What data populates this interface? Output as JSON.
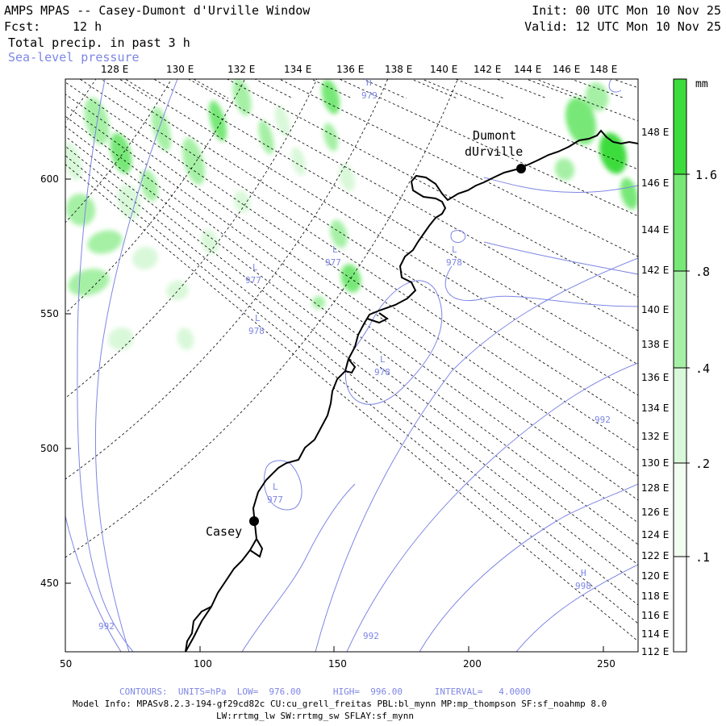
{
  "header": {
    "title": "AMPS MPAS -- Casey-Dumont d'Urville Window",
    "fcst_label": "Fcst:",
    "fcst_value": "12 h",
    "field1": "Total precip. in past 3 h",
    "field2": "Sea-level pressure",
    "init": "Init: 00 UTC Mon 10 Nov 25",
    "valid": "Valid: 12 UTC Mon 10 Nov 25"
  },
  "top_lon_labels": [
    "128 E",
    "130 E",
    "132 E",
    "134 E",
    "136 E",
    "138 E",
    "140 E",
    "142 E",
    "144 E",
    "146 E",
    "148 E"
  ],
  "right_lon_labels": [
    "148 E",
    "146 E",
    "144 E",
    "142 E",
    "140 E",
    "138 E",
    "136 E",
    "134 E",
    "132 E",
    "130 E",
    "128 E",
    "126 E",
    "124 E",
    "122 E",
    "120 E",
    "118 E",
    "116 E",
    "114 E",
    "112 E"
  ],
  "x_axis_labels": [
    "50",
    "100",
    "150",
    "200",
    "250"
  ],
  "y_axis_labels": [
    "600",
    "550",
    "500",
    "450"
  ],
  "stations": [
    {
      "name": "Casey"
    },
    {
      "name_line1": "Dumont",
      "name_line2": "dUrville"
    }
  ],
  "pressure_labels": [
    {
      "kind": "H",
      "value": "979"
    },
    {
      "kind": "L",
      "value": "977"
    },
    {
      "kind": "L",
      "value": "977"
    },
    {
      "kind": "L",
      "value": "978"
    },
    {
      "kind": "L",
      "value": "978"
    },
    {
      "kind": "L",
      "value": "978"
    },
    {
      "kind": "L",
      "value": "977"
    },
    {
      "kind": "H",
      "value": "998"
    },
    {
      "kind": "",
      "value": "992"
    },
    {
      "kind": "",
      "value": "992"
    },
    {
      "kind": "",
      "value": "992"
    }
  ],
  "colorbar": {
    "unit": "mm",
    "labels": [
      "1.6",
      ".8",
      ".4",
      ".2",
      ".1"
    ],
    "colors": [
      "#3ddc3d",
      "#77e877",
      "#a6f0a6",
      "#d9f8d9",
      "#f2fdf2"
    ]
  },
  "footer": {
    "contours": "CONTOURS:  UNITS=hPa  LOW=  976.00      HIGH=  996.00      INTERVAL=   4.0000",
    "model_info": "Model Info: MPASv8.2.3-194-gf29cd82c CU:cu_grell_freitas PBL:bl_mynn MP:mp_thompson SF:sf_noahmp 8.0",
    "model_info2": "LW:rrtmg_lw SW:rrtmg_sw SFLAY:sf_mynn"
  },
  "colors": {
    "contour": "#7e86e4",
    "precip_light": "#d9f8d9",
    "precip_mid": "#a6f0a6",
    "precip_strong": "#3ddc3d"
  }
}
